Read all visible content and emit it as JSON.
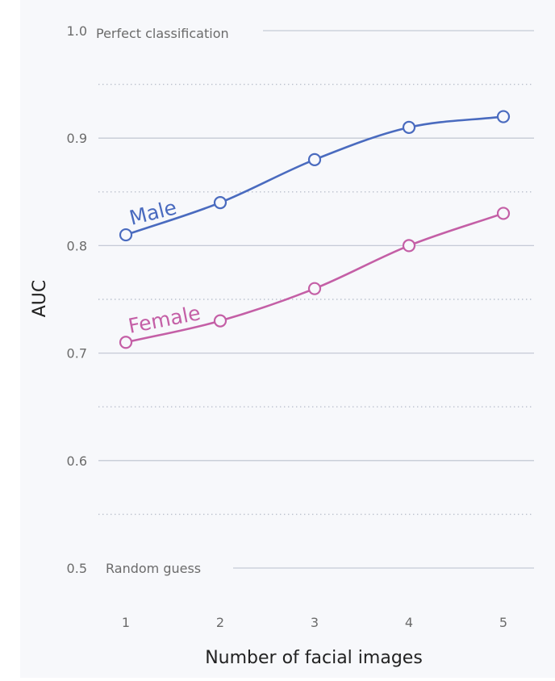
{
  "chart_data": {
    "type": "line",
    "xlabel": "Number of facial images",
    "ylabel": "AUC",
    "x": [
      1,
      2,
      3,
      4,
      5
    ],
    "xlim": [
      1,
      5
    ],
    "ylim": [
      0.5,
      1.0
    ],
    "y_ticks": [
      0.5,
      0.6,
      0.7,
      0.8,
      0.9,
      1.0
    ],
    "y_tick_labels": [
      "0.5",
      "0.6",
      "0.7",
      "0.8",
      "0.9",
      "1.0"
    ],
    "x_tick_labels": [
      "1",
      "2",
      "3",
      "4",
      "5"
    ],
    "minor_gridlines": [
      0.55,
      0.65,
      0.75,
      0.85,
      0.95
    ],
    "grid": true,
    "annotations": {
      "top": "Perfect classification",
      "bottom": "Random guess"
    },
    "series": [
      {
        "name": "Male",
        "values": [
          0.81,
          0.84,
          0.88,
          0.91,
          0.92
        ],
        "color": "#4a6bbf"
      },
      {
        "name": "Female",
        "values": [
          0.71,
          0.73,
          0.76,
          0.8,
          0.83
        ],
        "color": "#c45fa6"
      }
    ],
    "colors": {
      "background": "#f7f8fb",
      "gridline": "#c5cad6",
      "minor_gridline": "#b9bfcc",
      "tick_text": "#6b6b6b",
      "title_text": "#222222"
    }
  }
}
